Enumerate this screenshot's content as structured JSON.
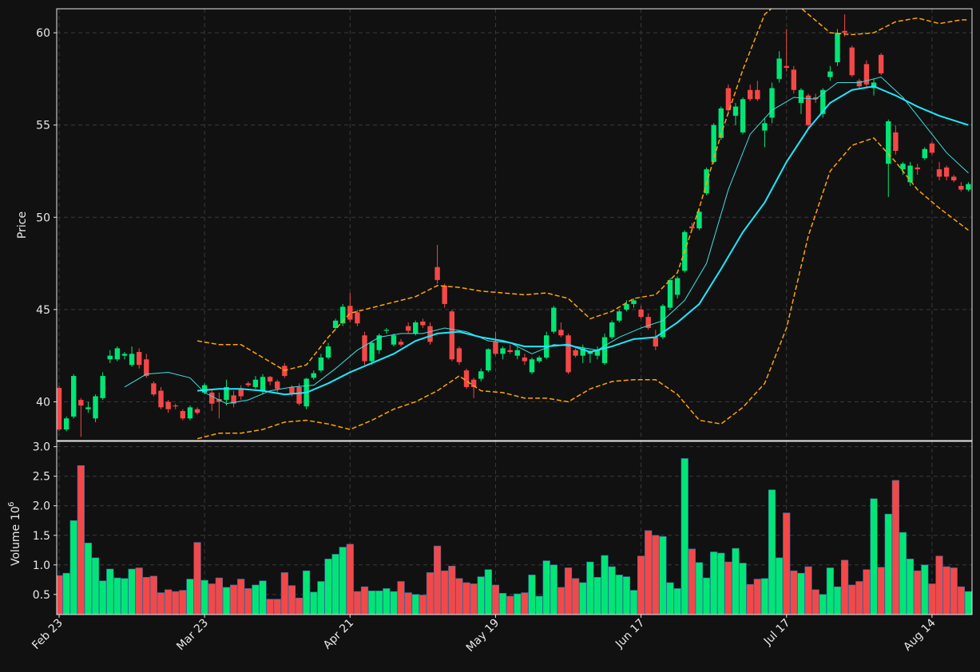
{
  "chart_data": [
    {
      "type": "candlestick",
      "ylabel": "Price",
      "up_color": "#00e676",
      "down_color": "#f44848",
      "xlim": [
        -0.33,
        125.5
      ],
      "ylim": [
        37.9,
        61.3
      ],
      "yticks": [
        40,
        45,
        50,
        55,
        60
      ],
      "grid": true,
      "open": [
        40.75,
        38.5,
        39.2,
        40.1,
        39.6,
        39.1,
        40.2,
        42.3,
        42.3,
        42.5,
        42.0,
        42.7,
        42.3,
        41.0,
        40.6,
        40.0,
        39.8,
        39.5,
        39.1,
        39.6,
        40.5,
        40.5,
        40.15,
        40.1,
        40.35,
        40.7,
        41.0,
        40.8,
        40.55,
        41.35,
        41.1,
        41.95,
        40.8,
        40.8,
        39.75,
        41.3,
        41.7,
        42.4,
        44.0,
        44.25,
        45.2,
        44.85,
        43.6,
        42.2,
        42.8,
        43.85,
        43.1,
        43.25,
        44.1,
        43.7,
        44.35,
        44.1,
        47.3,
        46.3,
        44.9,
        42.9,
        41.7,
        41.2,
        41.25,
        41.7,
        43.25,
        42.6,
        42.8,
        42.5,
        42.4,
        41.6,
        42.2,
        42.4,
        43.8,
        43.9,
        43.6,
        42.8,
        42.5,
        42.6,
        42.5,
        42.1,
        43.5,
        44.4,
        45.0,
        45.3,
        45.0,
        44.6,
        43.5,
        43.5,
        45.1,
        45.8,
        47.1,
        49.5,
        49.4,
        51.3,
        53.0,
        54.3,
        57.0,
        55.5,
        54.6,
        56.9,
        56.9,
        54.7,
        55.4,
        57.5,
        58.2,
        58.0,
        56.2,
        56.6,
        56.5,
        55.6,
        57.6,
        58.4,
        60.1,
        59.2,
        57.4,
        58.3,
        57.0,
        58.8,
        52.9,
        54.6,
        52.6,
        51.9,
        52.7,
        53.2,
        54.0,
        52.6,
        52.7,
        52.2,
        51.7,
        51.5
      ],
      "high": [
        40.85,
        39.2,
        41.5,
        40.2,
        40.0,
        40.4,
        41.6,
        42.8,
        43.0,
        42.7,
        43.0,
        42.9,
        42.6,
        41.1,
        40.8,
        40.1,
        39.9,
        39.6,
        39.8,
        39.7,
        41.0,
        40.7,
        40.5,
        41.2,
        40.6,
        40.9,
        41.1,
        41.4,
        41.5,
        41.4,
        41.2,
        42.1,
        40.9,
        41.0,
        41.3,
        41.7,
        42.6,
        43.2,
        44.5,
        45.3,
        45.9,
        45.0,
        43.8,
        43.3,
        43.7,
        44.0,
        43.7,
        43.4,
        44.3,
        44.4,
        44.5,
        44.3,
        48.5,
        46.4,
        45.0,
        43.0,
        41.8,
        41.3,
        41.8,
        42.9,
        43.8,
        43.0,
        43.1,
        43.0,
        42.6,
        42.4,
        42.5,
        43.8,
        45.2,
        44.3,
        43.7,
        42.9,
        43.1,
        42.8,
        43.0,
        43.7,
        44.4,
        45.0,
        45.5,
        45.6,
        45.2,
        44.8,
        43.9,
        45.3,
        46.7,
        46.8,
        49.3,
        49.7,
        50.4,
        52.7,
        55.1,
        56.0,
        57.2,
        56.2,
        56.5,
        57.2,
        57.4,
        55.4,
        57.3,
        59.0,
        60.2,
        58.2,
        57.0,
        56.7,
        56.7,
        57.0,
        58.2,
        60.2,
        61.0,
        59.3,
        57.5,
        58.5,
        57.5,
        58.9,
        55.3,
        55.0,
        53.0,
        53.0,
        52.9,
        53.8,
        54.1,
        53.0,
        52.8,
        52.3,
        51.9,
        51.9
      ],
      "low": [
        38.4,
        38.4,
        39.1,
        38.1,
        39.4,
        38.9,
        40.1,
        42.1,
        42.2,
        42.3,
        41.9,
        41.8,
        41.3,
        40.3,
        39.6,
        39.4,
        39.6,
        39.0,
        39.0,
        39.3,
        40.4,
        39.5,
        39.1,
        39.8,
        39.7,
        40.1,
        40.8,
        40.7,
        40.4,
        40.9,
        40.5,
        41.3,
        40.3,
        39.8,
        39.6,
        41.2,
        41.6,
        42.3,
        43.9,
        44.1,
        44.3,
        44.1,
        42.0,
        42.0,
        42.6,
        43.7,
        43.0,
        43.0,
        43.7,
        43.6,
        44.0,
        43.1,
        46.4,
        45.1,
        42.2,
        42.0,
        40.7,
        40.2,
        41.1,
        41.6,
        42.5,
        42.3,
        42.6,
        42.3,
        42.0,
        41.5,
        42.1,
        42.3,
        43.7,
        43.5,
        41.5,
        42.4,
        42.1,
        42.1,
        42.3,
        42.0,
        43.4,
        44.3,
        44.9,
        45.1,
        44.5,
        43.9,
        42.8,
        43.4,
        45.0,
        45.6,
        47.0,
        49.3,
        49.3,
        51.2,
        52.9,
        54.2,
        55.7,
        55.0,
        54.5,
        56.3,
        56.3,
        53.8,
        55.1,
        57.3,
        57.9,
        56.7,
        55.6,
        54.8,
        56.2,
        55.4,
        57.4,
        58.2,
        59.8,
        57.6,
        57.0,
        57.0,
        56.6,
        57.7,
        51.1,
        53.4,
        52.3,
        51.7,
        52.3,
        53.1,
        53.4,
        52.0,
        52.0,
        51.9,
        51.4,
        51.4
      ],
      "close": [
        38.5,
        39.1,
        41.4,
        39.8,
        39.7,
        40.3,
        41.4,
        42.5,
        42.9,
        42.6,
        42.6,
        42.0,
        41.4,
        40.4,
        39.7,
        39.6,
        39.75,
        39.1,
        39.7,
        39.4,
        40.9,
        39.9,
        40.0,
        40.8,
        39.9,
        40.3,
        40.9,
        41.2,
        41.35,
        41.1,
        40.7,
        41.4,
        40.45,
        39.9,
        41.25,
        41.55,
        42.4,
        43.0,
        44.4,
        45.15,
        44.45,
        44.25,
        42.2,
        43.2,
        43.6,
        43.9,
        43.6,
        43.1,
        43.85,
        44.3,
        44.15,
        43.25,
        46.6,
        45.3,
        42.3,
        42.15,
        40.8,
        40.8,
        41.65,
        42.85,
        42.6,
        42.9,
        42.7,
        42.8,
        42.2,
        42.3,
        42.4,
        43.6,
        45.1,
        43.6,
        41.6,
        42.5,
        42.9,
        42.7,
        42.8,
        43.5,
        44.3,
        44.9,
        45.3,
        45.5,
        44.6,
        44.0,
        43.0,
        45.2,
        46.6,
        46.7,
        49.2,
        49.4,
        50.3,
        52.6,
        55.0,
        55.9,
        55.8,
        56.0,
        56.4,
        56.4,
        56.4,
        55.1,
        57.0,
        58.6,
        58.1,
        56.9,
        56.9,
        55.0,
        56.4,
        56.9,
        57.9,
        60.0,
        60.0,
        57.7,
        57.1,
        57.2,
        57.3,
        57.8,
        55.2,
        53.6,
        52.9,
        52.8,
        52.6,
        53.7,
        53.5,
        52.2,
        52.2,
        52.0,
        51.5,
        51.8
      ],
      "lines": [
        {
          "color": "#3ee0e0",
          "linewidth": 1,
          "style": "solid",
          "x": [
            9,
            12,
            15,
            18,
            20,
            23,
            26,
            29,
            32,
            35,
            38,
            41,
            44,
            47,
            50,
            53,
            56,
            59,
            62,
            65,
            68,
            71,
            74,
            77,
            80,
            83,
            86,
            89,
            92,
            95,
            98,
            101,
            104,
            107,
            110,
            113,
            116,
            119,
            122,
            125
          ],
          "values": [
            40.8,
            41.5,
            41.6,
            41.3,
            40.5,
            39.9,
            40.1,
            40.6,
            40.8,
            40.9,
            41.8,
            42.8,
            43.5,
            43.7,
            43.7,
            44.0,
            43.8,
            43.3,
            43.2,
            42.6,
            43.1,
            43.0,
            42.8,
            43.5,
            44.0,
            44.4,
            45.5,
            47.5,
            51.5,
            54.5,
            55.8,
            56.5,
            56.4,
            57.3,
            57.3,
            57.6,
            56.5,
            55.0,
            53.5,
            52.4
          ]
        },
        {
          "color": "#1ee8ff",
          "linewidth": 2,
          "style": "solid",
          "x": [
            19,
            22,
            25,
            28,
            31,
            34,
            37,
            40,
            43,
            46,
            49,
            52,
            55,
            58,
            61,
            64,
            67,
            70,
            73,
            76,
            79,
            82,
            85,
            88,
            91,
            94,
            97,
            100,
            103,
            106,
            109,
            112,
            115,
            118,
            121,
            125
          ],
          "values": [
            40.6,
            40.7,
            40.7,
            40.6,
            40.4,
            40.5,
            41.0,
            41.6,
            42.1,
            42.6,
            43.3,
            43.7,
            43.8,
            43.5,
            43.3,
            43.0,
            43.0,
            43.1,
            42.7,
            43.0,
            43.4,
            43.5,
            44.3,
            45.3,
            47.2,
            49.2,
            50.8,
            53.0,
            54.8,
            56.2,
            56.9,
            57.1,
            56.6,
            56.0,
            55.5,
            55.0
          ]
        },
        {
          "color": "#ffa500",
          "linewidth": 1.5,
          "style": "dashed",
          "x": [
            19,
            22,
            25,
            28,
            31,
            34,
            37,
            40,
            43,
            46,
            49,
            52,
            55,
            58,
            61,
            64,
            67,
            70,
            73,
            76,
            79,
            82,
            85,
            88,
            91,
            94,
            97,
            100,
            103,
            106,
            109,
            112,
            115,
            118,
            121,
            124,
            125
          ],
          "values": [
            43.3,
            43.1,
            43.1,
            42.4,
            41.7,
            42.0,
            43.5,
            44.8,
            45.1,
            45.4,
            45.7,
            46.3,
            46.2,
            46.0,
            45.9,
            45.8,
            45.9,
            45.6,
            44.5,
            44.9,
            45.6,
            45.8,
            47.0,
            50.5,
            54.5,
            58.0,
            61.0,
            62.0,
            61.0,
            60.0,
            59.9,
            60.0,
            60.6,
            60.8,
            60.5,
            60.7,
            60.7
          ]
        },
        {
          "color": "#ffa500",
          "linewidth": 1.5,
          "style": "dashed",
          "x": [
            19,
            22,
            25,
            28,
            31,
            34,
            37,
            40,
            43,
            46,
            49,
            52,
            55,
            58,
            61,
            64,
            67,
            70,
            73,
            76,
            79,
            82,
            85,
            88,
            91,
            94,
            97,
            100,
            103,
            106,
            109,
            112,
            115,
            118,
            121,
            125
          ],
          "values": [
            38.0,
            38.3,
            38.3,
            38.5,
            38.9,
            39.0,
            38.8,
            38.5,
            39.0,
            39.6,
            40.0,
            40.6,
            41.4,
            40.6,
            40.5,
            40.2,
            40.2,
            40.0,
            40.7,
            41.1,
            41.2,
            41.2,
            40.4,
            39.0,
            38.8,
            39.7,
            41.0,
            44.0,
            49.0,
            52.5,
            53.9,
            54.3,
            53.0,
            51.5,
            50.5,
            49.3
          ]
        }
      ]
    },
    {
      "type": "bar",
      "ylabel": "Volume",
      "ylabel_base": "10",
      "ylabel_exponent": "6",
      "ylim": [
        0.16,
        3.09
      ],
      "yticks": [
        0.5,
        1.0,
        1.5,
        2.0,
        2.5,
        3.0
      ],
      "grid": true,
      "categories": [
        "Feb 23",
        null,
        null,
        null,
        null,
        null,
        null,
        null,
        null,
        null,
        null,
        null,
        null,
        null,
        null,
        null,
        null,
        null,
        null,
        null,
        "Mar 23",
        null,
        null,
        null,
        null,
        null,
        null,
        null,
        null,
        null,
        null,
        null,
        null,
        null,
        null,
        null,
        null,
        null,
        null,
        null,
        "Apr 21",
        null,
        null,
        null,
        null,
        null,
        null,
        null,
        null,
        null,
        null,
        null,
        null,
        null,
        null,
        null,
        null,
        null,
        null,
        null,
        "May 19",
        null,
        null,
        null,
        null,
        null,
        null,
        null,
        null,
        null,
        null,
        null,
        null,
        null,
        null,
        null,
        null,
        null,
        null,
        null,
        "Jun 17",
        null,
        null,
        null,
        null,
        null,
        null,
        null,
        null,
        null,
        null,
        null,
        null,
        null,
        null,
        null,
        null,
        null,
        null,
        null,
        "Jul 17",
        null,
        null,
        null,
        null,
        null,
        null,
        null,
        null,
        null,
        null,
        null,
        null,
        null,
        null,
        null,
        null,
        null,
        null,
        null,
        "Aug 14",
        null,
        null,
        null,
        null,
        null
      ],
      "values": [
        0.82,
        0.86,
        1.75,
        2.68,
        1.37,
        1.12,
        0.73,
        0.93,
        0.78,
        0.77,
        0.93,
        0.95,
        0.79,
        0.81,
        0.53,
        0.58,
        0.55,
        0.57,
        0.76,
        1.38,
        0.74,
        0.68,
        0.78,
        0.62,
        0.66,
        0.76,
        0.6,
        0.66,
        0.73,
        0.42,
        0.42,
        0.87,
        0.65,
        0.44,
        0.9,
        0.54,
        0.72,
        1.1,
        1.18,
        1.3,
        1.35,
        0.55,
        0.63,
        0.56,
        0.56,
        0.6,
        0.55,
        0.72,
        0.53,
        0.5,
        0.49,
        0.87,
        1.32,
        0.9,
        0.98,
        0.77,
        0.7,
        0.68,
        0.8,
        0.92,
        0.66,
        0.52,
        0.47,
        0.51,
        0.53,
        0.83,
        0.47,
        1.07,
        1.0,
        0.62,
        0.95,
        0.77,
        0.7,
        1.05,
        0.79,
        1.16,
        0.97,
        0.83,
        0.8,
        0.57,
        1.15,
        1.58,
        1.5,
        1.48,
        0.7,
        0.6,
        2.8,
        1.27,
        1.04,
        0.78,
        1.22,
        1.2,
        1.05,
        1.28,
        1.03,
        0.67,
        0.76,
        0.77,
        2.27,
        1.12,
        1.88,
        0.9,
        0.86,
        0.97,
        0.58,
        0.5,
        0.95,
        0.63,
        1.08,
        0.66,
        0.72,
        0.92,
        2.12,
        0.96,
        1.86,
        2.43,
        1.55,
        1.1,
        0.9,
        1.0,
        0.68,
        1.15,
        0.97,
        0.95,
        0.63,
        0.55
      ]
    }
  ]
}
